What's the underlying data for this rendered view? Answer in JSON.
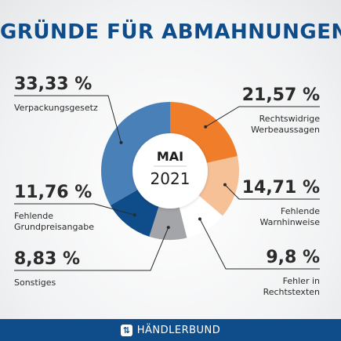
{
  "title": "GRÜNDE FÜR ABMAHNUNGEN",
  "center": {
    "month": "MAI",
    "year": "2021"
  },
  "footer": {
    "brand": "HÄNDLERBUND",
    "icon": "haendlerbund-logo-icon"
  },
  "colors": {
    "title": "#0f4c8a",
    "footer_bg": "#0f4c8a",
    "slices": [
      "#ef7d2a",
      "#f7c198",
      "#ffffff",
      "#a3a5a8",
      "#0f4c8a",
      "#4a80b8"
    ]
  },
  "chart_data": {
    "type": "pie",
    "variant": "donut",
    "categories": [
      "Rechtswidrige Werbeaussagen",
      "Fehlende Warnhinweise",
      "Fehler in Rechtstexten",
      "Sonstiges",
      "Fehlende Grundpreisangabe",
      "Verpackungsgesetz"
    ],
    "values": [
      21.57,
      14.71,
      9.8,
      8.83,
      11.76,
      33.33
    ],
    "value_labels": [
      "21,57 %",
      "14,71 %",
      "9,8 %",
      "8,83 %",
      "11,76 %",
      "33,33 %"
    ],
    "label_lines": [
      [
        "Rechtswidrige",
        "Werbeaussagen"
      ],
      [
        "Fehlende",
        "Warnhinweise"
      ],
      [
        "Fehler in",
        "Rechtstexten"
      ],
      [
        "Sonstiges"
      ],
      [
        "Fehlende",
        "Grundpreisangabe"
      ],
      [
        "Verpackungsgesetz"
      ]
    ],
    "title": "GRÜNDE FÜR ABMAHNUNGEN"
  }
}
